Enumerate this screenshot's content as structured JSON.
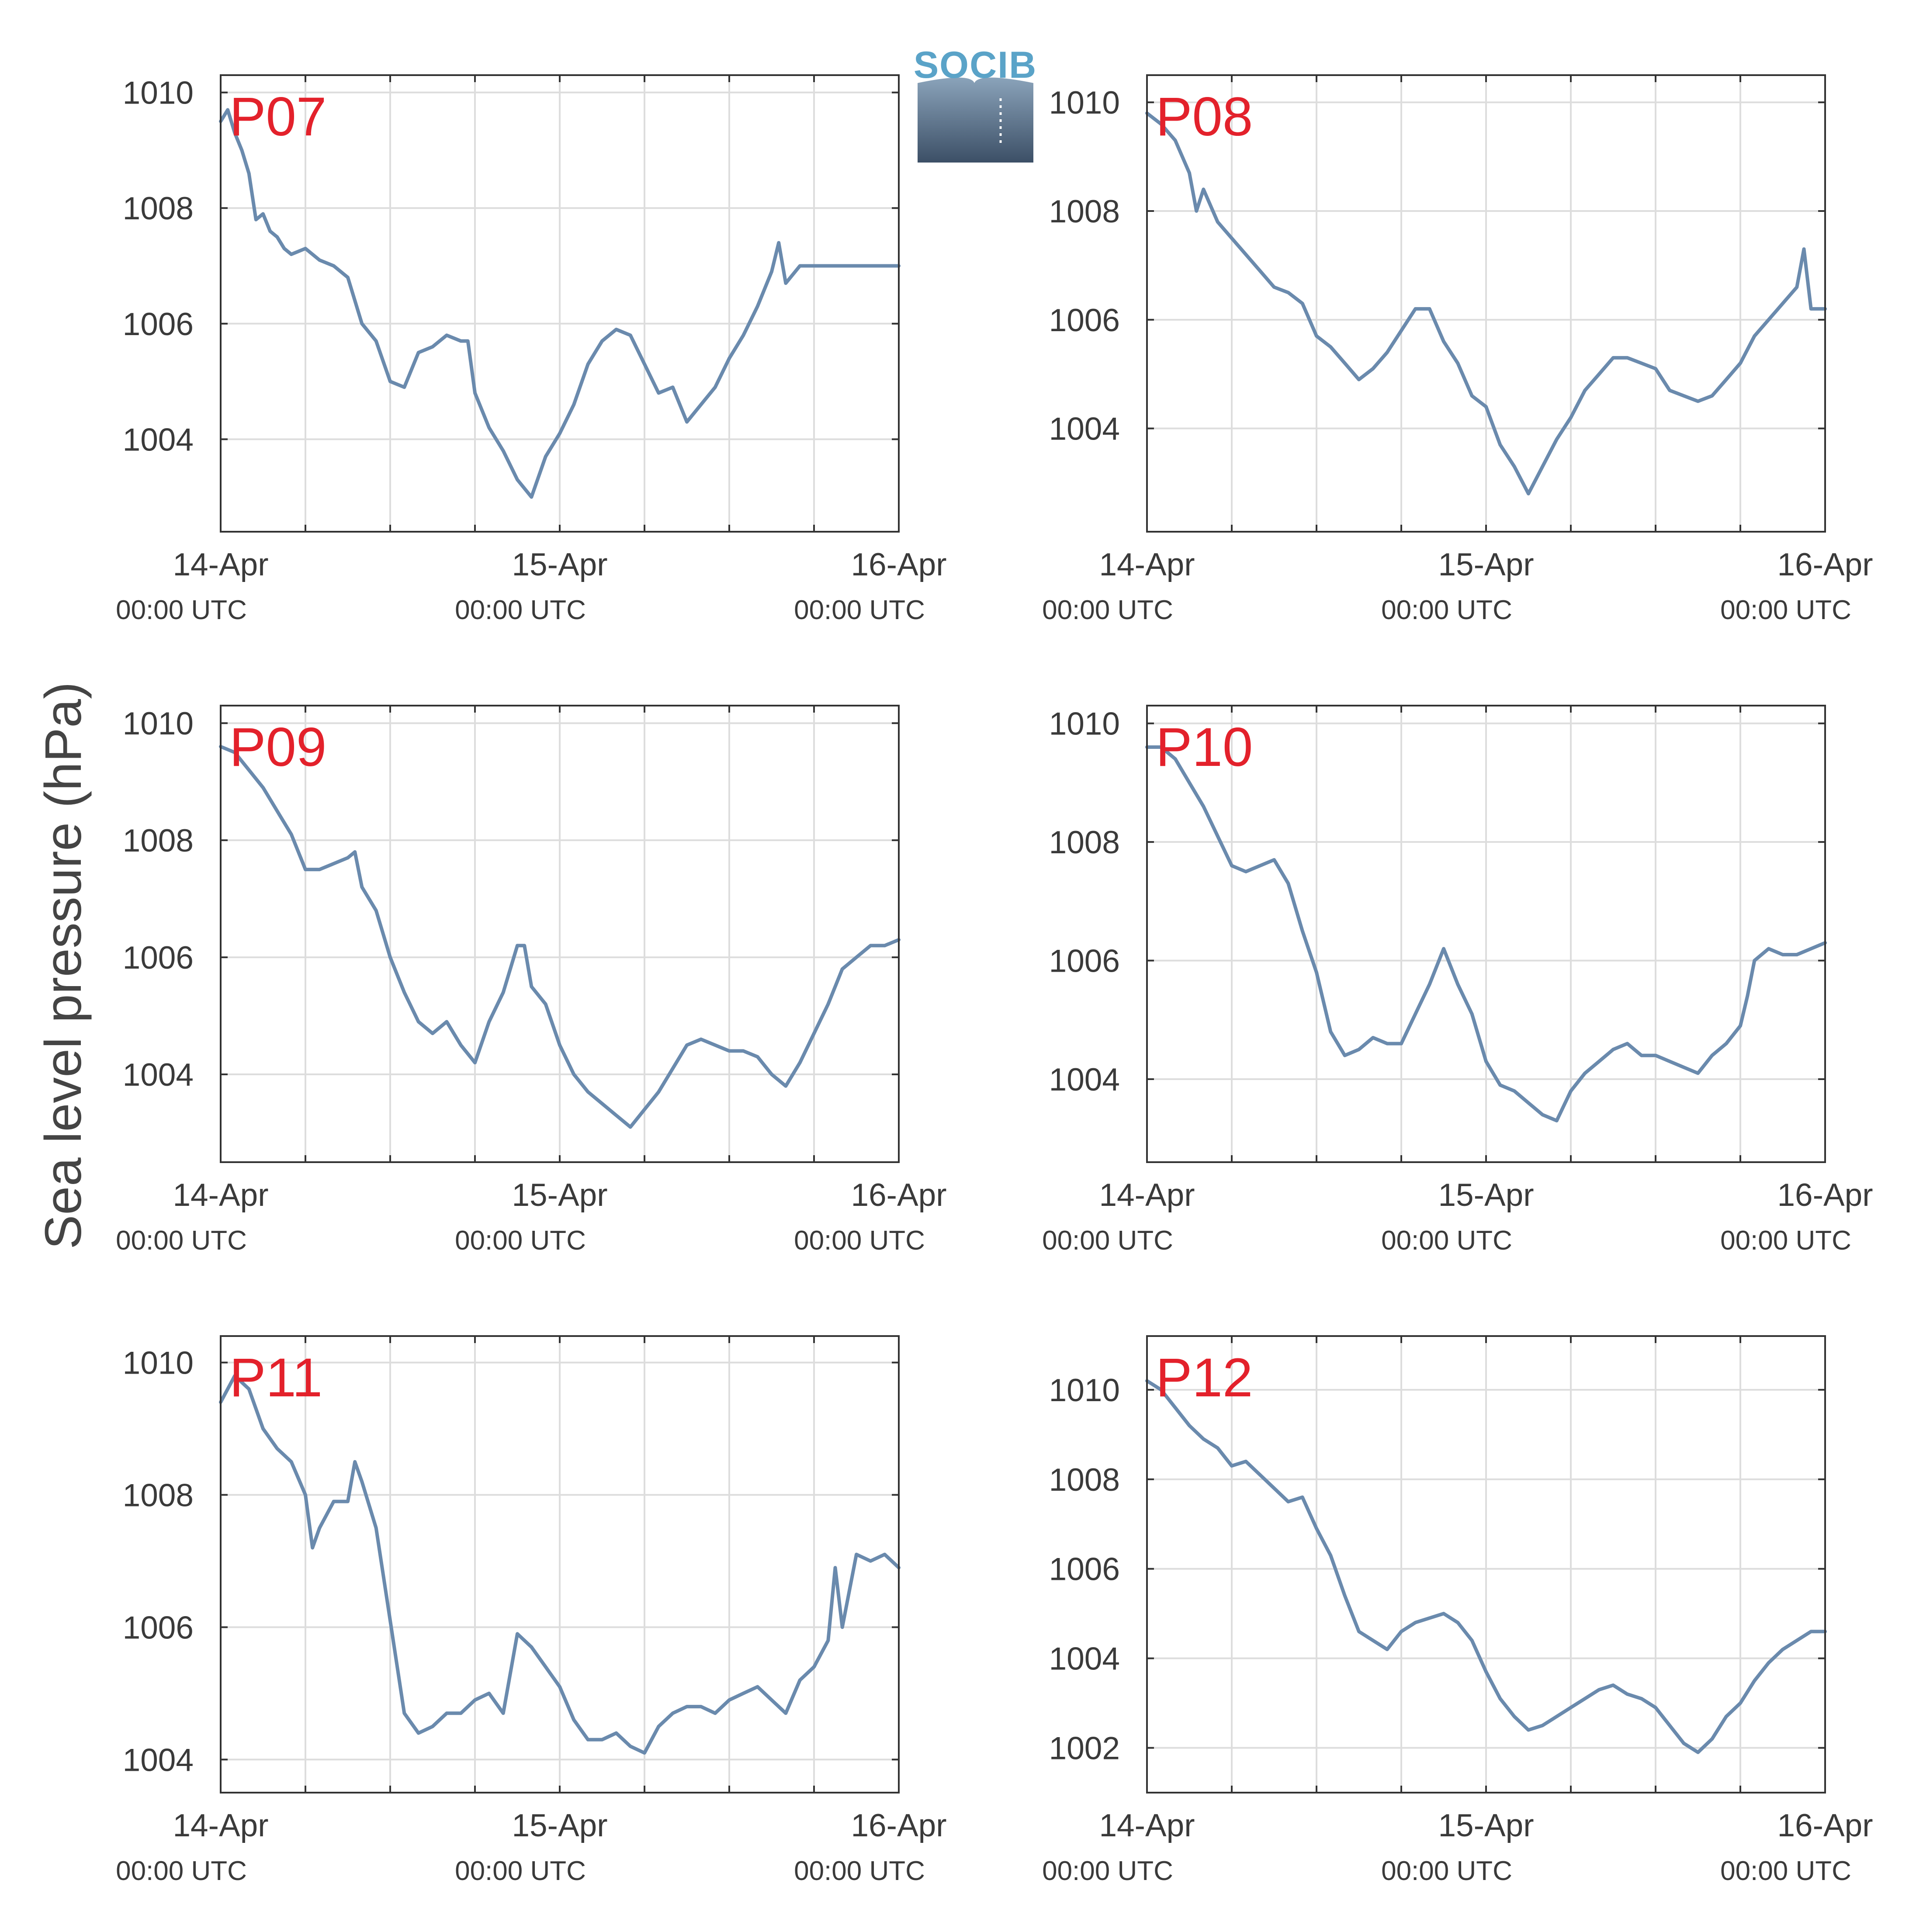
{
  "figure": {
    "ylabel": "Sea level pressure (hPa)",
    "logo_text": "SOCIB",
    "colors": {
      "line": "#6a8aad",
      "label": "#e3212b",
      "grid": "#dddddd",
      "axis": "#333333"
    }
  },
  "chart_data": [
    {
      "type": "line",
      "label": "P07",
      "ylim": [
        1002.4,
        1010.3
      ],
      "xlim": [
        "14-Apr 00:00 UTC",
        "16-Apr 00:00 UTC"
      ],
      "yticks": [
        1004,
        1006,
        1008,
        1010
      ],
      "xticks": [
        {
          "day": "14-Apr",
          "time": "00:00 UTC"
        },
        {
          "day": "15-Apr",
          "time": "00:00 UTC"
        },
        {
          "day": "16-Apr",
          "time": "00:00 UTC"
        }
      ],
      "grid": true,
      "x_hours": [
        0,
        0.5,
        1,
        1.5,
        2,
        2.5,
        3,
        3.5,
        4,
        4.5,
        5,
        6,
        7,
        8,
        9,
        10,
        11,
        12,
        13,
        14,
        15,
        16,
        17,
        17.5,
        18,
        19,
        20,
        21,
        22,
        23,
        24,
        25,
        26,
        26.5,
        27,
        28,
        29,
        30,
        31,
        32,
        33,
        34,
        35,
        36,
        37,
        38,
        39,
        39.5,
        40,
        41,
        42,
        43,
        44,
        45,
        46,
        46.5,
        47,
        48
      ],
      "values": [
        1009.5,
        1009.7,
        1009.3,
        1009.0,
        1008.6,
        1007.8,
        1007.9,
        1007.6,
        1007.5,
        1007.3,
        1007.2,
        1007.3,
        1007.1,
        1007.0,
        1006.8,
        1006.0,
        1005.7,
        1005.0,
        1004.9,
        1005.5,
        1005.6,
        1005.8,
        1005.7,
        1005.7,
        1004.8,
        1004.2,
        1003.8,
        1003.3,
        1003.0,
        1003.7,
        1004.1,
        1004.6,
        1005.3,
        1005.5,
        1005.7,
        1005.9,
        1005.8,
        1005.3,
        1004.8,
        1004.9,
        1004.3,
        1004.6,
        1004.9,
        1005.4,
        1005.8,
        1006.3,
        1006.9,
        1007.4,
        1006.7,
        1007.0,
        1007.0,
        1007.0,
        1007.0,
        1007.0,
        1007.0,
        1007.0,
        1007.0,
        1007.0
      ]
    },
    {
      "type": "line",
      "label": "P08",
      "ylim": [
        1002.1,
        1010.5
      ],
      "xlim": [
        "14-Apr 00:00 UTC",
        "16-Apr 00:00 UTC"
      ],
      "yticks": [
        1004,
        1006,
        1008,
        1010
      ],
      "xticks": [
        {
          "day": "14-Apr",
          "time": "00:00 UTC"
        },
        {
          "day": "15-Apr",
          "time": "00:00 UTC"
        },
        {
          "day": "16-Apr",
          "time": "00:00 UTC"
        }
      ],
      "grid": true,
      "x_hours": [
        0,
        1,
        2,
        3,
        3.5,
        4,
        5,
        6,
        7,
        8,
        9,
        10,
        11,
        12,
        13,
        14,
        15,
        16,
        17,
        18,
        19,
        20,
        21,
        22,
        23,
        24,
        25,
        26,
        27,
        28,
        29,
        30,
        31,
        32,
        33,
        34,
        35,
        36,
        37,
        38,
        39,
        40,
        41,
        42,
        43,
        44,
        45,
        46,
        46.5,
        47,
        48
      ],
      "values": [
        1009.8,
        1009.6,
        1009.3,
        1008.7,
        1008.0,
        1008.4,
        1007.8,
        1007.5,
        1007.2,
        1006.9,
        1006.6,
        1006.5,
        1006.3,
        1005.7,
        1005.5,
        1005.2,
        1004.9,
        1005.1,
        1005.4,
        1005.8,
        1006.2,
        1006.2,
        1005.6,
        1005.2,
        1004.6,
        1004.4,
        1003.7,
        1003.3,
        1002.8,
        1003.3,
        1003.8,
        1004.2,
        1004.7,
        1005.0,
        1005.3,
        1005.3,
        1005.2,
        1005.1,
        1004.7,
        1004.6,
        1004.5,
        1004.6,
        1004.9,
        1005.2,
        1005.7,
        1006.0,
        1006.3,
        1006.6,
        1007.3,
        1006.2,
        1006.2
      ]
    },
    {
      "type": "line",
      "label": "P09",
      "ylim": [
        1002.5,
        1010.3
      ],
      "xlim": [
        "14-Apr 00:00 UTC",
        "16-Apr 00:00 UTC"
      ],
      "yticks": [
        1004,
        1006,
        1008,
        1010
      ],
      "xticks": [
        {
          "day": "14-Apr",
          "time": "00:00 UTC"
        },
        {
          "day": "15-Apr",
          "time": "00:00 UTC"
        },
        {
          "day": "16-Apr",
          "time": "00:00 UTC"
        }
      ],
      "grid": true,
      "x_hours": [
        0,
        1,
        2,
        3,
        4,
        5,
        6,
        7,
        8,
        9,
        9.5,
        10,
        11,
        12,
        13,
        14,
        15,
        16,
        17,
        18,
        19,
        20,
        21,
        21.5,
        22,
        23,
        24,
        25,
        26,
        27,
        28,
        29,
        30,
        31,
        32,
        33,
        34,
        35,
        36,
        37,
        38,
        39,
        40,
        41,
        42,
        43,
        44,
        45,
        46,
        47,
        48
      ],
      "values": [
        1009.6,
        1009.5,
        1009.2,
        1008.9,
        1008.5,
        1008.1,
        1007.5,
        1007.5,
        1007.6,
        1007.7,
        1007.8,
        1007.2,
        1006.8,
        1006.0,
        1005.4,
        1004.9,
        1004.7,
        1004.9,
        1004.5,
        1004.2,
        1004.9,
        1005.4,
        1006.2,
        1006.2,
        1005.5,
        1005.2,
        1004.5,
        1004.0,
        1003.7,
        1003.5,
        1003.3,
        1003.1,
        1003.4,
        1003.7,
        1004.1,
        1004.5,
        1004.6,
        1004.5,
        1004.4,
        1004.4,
        1004.3,
        1004.0,
        1003.8,
        1004.2,
        1004.7,
        1005.2,
        1005.8,
        1006.0,
        1006.2,
        1006.2,
        1006.3
      ]
    },
    {
      "type": "line",
      "label": "P10",
      "ylim": [
        1002.6,
        1010.3
      ],
      "xlim": [
        "14-Apr 00:00 UTC",
        "16-Apr 00:00 UTC"
      ],
      "yticks": [
        1004,
        1006,
        1008,
        1010
      ],
      "xticks": [
        {
          "day": "14-Apr",
          "time": "00:00 UTC"
        },
        {
          "day": "15-Apr",
          "time": "00:00 UTC"
        },
        {
          "day": "16-Apr",
          "time": "00:00 UTC"
        }
      ],
      "grid": true,
      "x_hours": [
        0,
        1,
        2,
        3,
        4,
        5,
        6,
        7,
        8,
        9,
        10,
        11,
        12,
        13,
        14,
        15,
        16,
        17,
        18,
        19,
        20,
        21,
        22,
        23,
        24,
        25,
        26,
        27,
        28,
        29,
        30,
        31,
        32,
        33,
        34,
        35,
        36,
        37,
        38,
        39,
        40,
        41,
        42,
        42.5,
        43,
        44,
        45,
        46,
        47,
        48
      ],
      "values": [
        1009.6,
        1009.6,
        1009.4,
        1009.0,
        1008.6,
        1008.1,
        1007.6,
        1007.5,
        1007.6,
        1007.7,
        1007.3,
        1006.5,
        1005.8,
        1004.8,
        1004.4,
        1004.5,
        1004.7,
        1004.6,
        1004.6,
        1005.1,
        1005.6,
        1006.2,
        1005.6,
        1005.1,
        1004.3,
        1003.9,
        1003.8,
        1003.6,
        1003.4,
        1003.3,
        1003.8,
        1004.1,
        1004.3,
        1004.5,
        1004.6,
        1004.4,
        1004.4,
        1004.3,
        1004.2,
        1004.1,
        1004.4,
        1004.6,
        1004.9,
        1005.4,
        1006.0,
        1006.2,
        1006.1,
        1006.1,
        1006.2,
        1006.3
      ]
    },
    {
      "type": "line",
      "label": "P11",
      "ylim": [
        1003.5,
        1010.4
      ],
      "xlim": [
        "14-Apr 00:00 UTC",
        "16-Apr 00:00 UTC"
      ],
      "yticks": [
        1004,
        1006,
        1008,
        1010
      ],
      "xticks": [
        {
          "day": "14-Apr",
          "time": "00:00 UTC"
        },
        {
          "day": "15-Apr",
          "time": "00:00 UTC"
        },
        {
          "day": "16-Apr",
          "time": "00:00 UTC"
        }
      ],
      "grid": true,
      "x_hours": [
        0,
        1,
        2,
        3,
        4,
        5,
        6,
        6.5,
        7,
        8,
        9,
        9.5,
        10,
        11,
        12,
        13,
        14,
        15,
        16,
        17,
        18,
        19,
        20,
        21,
        22,
        23,
        24,
        25,
        26,
        27,
        28,
        29,
        30,
        31,
        32,
        33,
        34,
        35,
        36,
        37,
        38,
        39,
        40,
        41,
        42,
        43,
        43.5,
        44,
        45,
        46,
        47,
        48
      ],
      "values": [
        1009.4,
        1009.8,
        1009.6,
        1009.0,
        1008.7,
        1008.5,
        1008.0,
        1007.2,
        1007.5,
        1007.9,
        1007.9,
        1008.5,
        1008.2,
        1007.5,
        1006.1,
        1004.7,
        1004.4,
        1004.5,
        1004.7,
        1004.7,
        1004.9,
        1005.0,
        1004.7,
        1005.9,
        1005.7,
        1005.4,
        1005.1,
        1004.6,
        1004.3,
        1004.3,
        1004.4,
        1004.2,
        1004.1,
        1004.5,
        1004.7,
        1004.8,
        1004.8,
        1004.7,
        1004.9,
        1005.0,
        1005.1,
        1004.9,
        1004.7,
        1005.2,
        1005.4,
        1005.8,
        1006.9,
        1006.0,
        1007.1,
        1007.0,
        1007.1,
        1006.9
      ]
    },
    {
      "type": "line",
      "label": "P12",
      "ylim": [
        1001.0,
        1011.2
      ],
      "xlim": [
        "14-Apr 00:00 UTC",
        "16-Apr 00:00 UTC"
      ],
      "yticks": [
        1002,
        1004,
        1006,
        1008,
        1010
      ],
      "xticks": [
        {
          "day": "14-Apr",
          "time": "00:00 UTC"
        },
        {
          "day": "15-Apr",
          "time": "00:00 UTC"
        },
        {
          "day": "16-Apr",
          "time": "00:00 UTC"
        }
      ],
      "grid": true,
      "x_hours": [
        0,
        1,
        2,
        3,
        4,
        5,
        6,
        7,
        8,
        9,
        10,
        11,
        12,
        13,
        14,
        15,
        16,
        17,
        18,
        19,
        20,
        21,
        22,
        23,
        24,
        25,
        26,
        27,
        28,
        29,
        30,
        31,
        32,
        33,
        34,
        35,
        36,
        37,
        38,
        39,
        40,
        41,
        42,
        43,
        44,
        45,
        46,
        47,
        48
      ],
      "values": [
        1010.2,
        1010.0,
        1009.6,
        1009.2,
        1008.9,
        1008.7,
        1008.3,
        1008.4,
        1008.1,
        1007.8,
        1007.5,
        1007.6,
        1006.9,
        1006.3,
        1005.4,
        1004.6,
        1004.4,
        1004.2,
        1004.6,
        1004.8,
        1004.9,
        1005.0,
        1004.8,
        1004.4,
        1003.7,
        1003.1,
        1002.7,
        1002.4,
        1002.5,
        1002.7,
        1002.9,
        1003.1,
        1003.3,
        1003.4,
        1003.2,
        1003.1,
        1002.9,
        1002.5,
        1002.1,
        1001.9,
        1002.2,
        1002.7,
        1003.0,
        1003.5,
        1003.9,
        1004.2,
        1004.4,
        1004.6,
        1004.6
      ]
    }
  ]
}
